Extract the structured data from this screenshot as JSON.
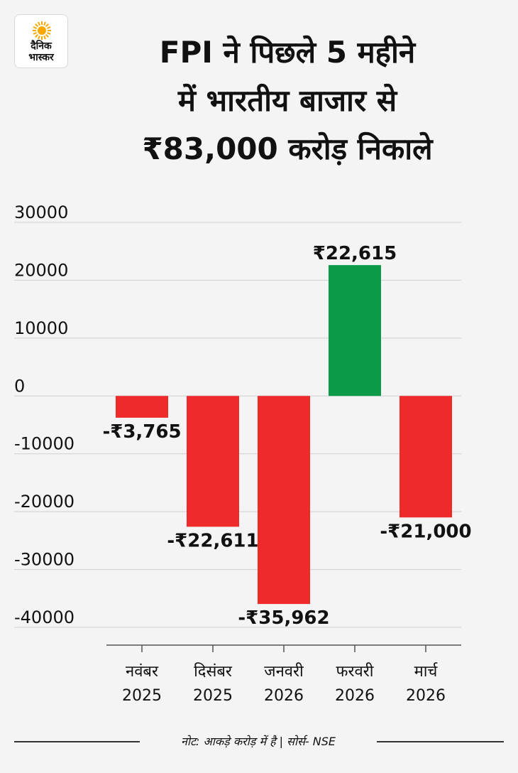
{
  "brand": {
    "logo_line1": "दैनिक",
    "logo_line2": "भास्कर",
    "sun_color": "#f6a800"
  },
  "title_lines": [
    "FPI ने पिछले 5 महीने",
    "में भारतीय बाजार से",
    "₹83,000 करोड़ निकाले"
  ],
  "chart_data": {
    "type": "bar",
    "categories": [
      [
        "नवंबर",
        "2025"
      ],
      [
        "दिसंबर",
        "2025"
      ],
      [
        "जनवरी",
        "2026"
      ],
      [
        "फरवरी",
        "2026"
      ],
      [
        "मार्च",
        "2026"
      ]
    ],
    "values": [
      -3765,
      -22611,
      -35962,
      22615,
      -21000
    ],
    "data_labels": [
      "-₹3,765",
      "-₹22,611",
      "-₹35,962",
      "₹22,615",
      "-₹21,000"
    ],
    "yticks": [
      30000,
      20000,
      10000,
      0,
      -10000,
      -20000,
      -30000,
      -40000
    ],
    "ylim": [
      -40000,
      30000
    ],
    "grid": true,
    "colors": {
      "positive": "#0a9a48",
      "negative": "#ee2a2a",
      "grid": "#cfcfcf",
      "axis": "#555555"
    }
  },
  "footer": {
    "note": "नोट: आकड़े करोड़ में है | सोर्स- NSE"
  }
}
